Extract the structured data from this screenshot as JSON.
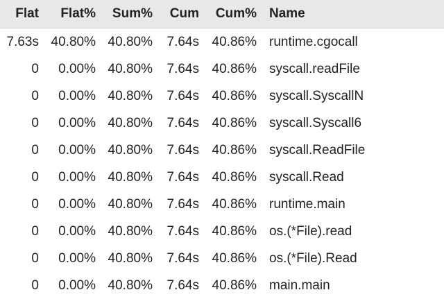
{
  "table": {
    "headers": [
      "Flat",
      "Flat%",
      "Sum%",
      "Cum",
      "Cum%",
      "Name"
    ],
    "rows": [
      [
        "7.63s",
        "40.80%",
        "40.80%",
        "7.64s",
        "40.86%",
        "runtime.cgocall"
      ],
      [
        "0",
        "0.00%",
        "40.80%",
        "7.64s",
        "40.86%",
        "syscall.readFile"
      ],
      [
        "0",
        "0.00%",
        "40.80%",
        "7.64s",
        "40.86%",
        "syscall.SyscallN"
      ],
      [
        "0",
        "0.00%",
        "40.80%",
        "7.64s",
        "40.86%",
        "syscall.Syscall6"
      ],
      [
        "0",
        "0.00%",
        "40.80%",
        "7.64s",
        "40.86%",
        "syscall.ReadFile"
      ],
      [
        "0",
        "0.00%",
        "40.80%",
        "7.64s",
        "40.86%",
        "syscall.Read"
      ],
      [
        "0",
        "0.00%",
        "40.80%",
        "7.64s",
        "40.86%",
        "runtime.main"
      ],
      [
        "0",
        "0.00%",
        "40.80%",
        "7.64s",
        "40.86%",
        "os.(*File).read"
      ],
      [
        "0",
        "0.00%",
        "40.80%",
        "7.64s",
        "40.86%",
        "os.(*File).Read"
      ],
      [
        "0",
        "0.00%",
        "40.80%",
        "7.64s",
        "40.86%",
        "main.main"
      ]
    ]
  }
}
